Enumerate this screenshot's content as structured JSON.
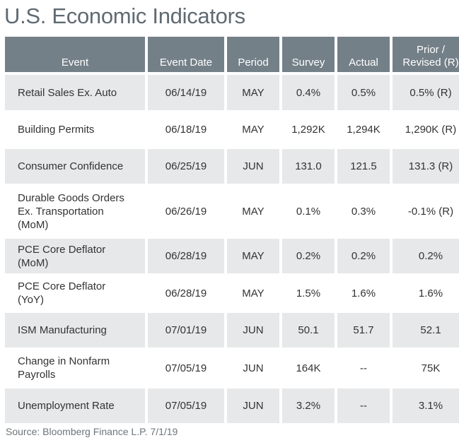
{
  "title": "U.S. Economic Indicators",
  "headers": {
    "event": "Event",
    "event_date": "Event Date",
    "period": "Period",
    "survey": "Survey",
    "actual": "Actual",
    "prior_line1": "Prior /",
    "prior_line2": "Revised (R)"
  },
  "rows": [
    {
      "event": [
        "Retail Sales Ex. Auto"
      ],
      "date": "06/14/19",
      "period": "MAY",
      "survey": "0.4%",
      "actual": "0.5%",
      "prior": "0.5% (R)"
    },
    {
      "event": [
        "Building Permits"
      ],
      "date": "06/18/19",
      "period": "MAY",
      "survey": "1,292K",
      "actual": "1,294K",
      "prior": "1,290K (R)"
    },
    {
      "event": [
        "Consumer Confidence"
      ],
      "date": "06/25/19",
      "period": "JUN",
      "survey": "131.0",
      "actual": "121.5",
      "prior": "131.3 (R)"
    },
    {
      "event": [
        "Durable Goods Orders",
        "Ex. Transportation",
        "(MoM)"
      ],
      "date": "06/26/19",
      "period": "MAY",
      "survey": "0.1%",
      "actual": "0.3%",
      "prior": "-0.1% (R)"
    },
    {
      "event": [
        "PCE Core Deflator",
        "(MoM)"
      ],
      "date": "06/28/19",
      "period": "MAY",
      "survey": "0.2%",
      "actual": "0.2%",
      "prior": "0.2%"
    },
    {
      "event": [
        "PCE Core Deflator",
        "(YoY)"
      ],
      "date": "06/28/19",
      "period": "MAY",
      "survey": "1.5%",
      "actual": "1.6%",
      "prior": "1.6%"
    },
    {
      "event": [
        "ISM Manufacturing"
      ],
      "date": "07/01/19",
      "period": "JUN",
      "survey": "50.1",
      "actual": "51.7",
      "prior": "52.1"
    },
    {
      "event": [
        "Change in Nonfarm",
        "Payrolls"
      ],
      "date": "07/05/19",
      "period": "JUN",
      "survey": "164K",
      "actual": "--",
      "prior": "75K"
    },
    {
      "event": [
        "Unemployment Rate"
      ],
      "date": "07/05/19",
      "period": "JUN",
      "survey": "3.2%",
      "actual": "--",
      "prior": "3.1%"
    }
  ],
  "source": "Source: Bloomberg Finance L.P. 7/1/19",
  "colors": {
    "header_bg": "#748088",
    "shaded_row": "#e7e8e9",
    "title_text": "#5f6a72"
  }
}
